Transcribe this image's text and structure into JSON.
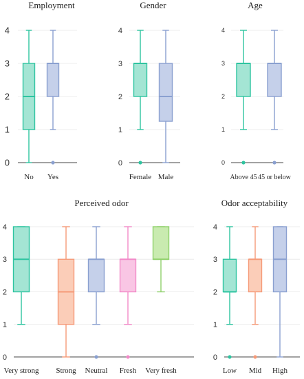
{
  "chart_data": [
    {
      "type": "box",
      "title": "Employment",
      "categories": [
        "No",
        "Yes"
      ],
      "yticks": [
        0,
        1,
        2,
        3,
        4
      ],
      "ylim": [
        0,
        4
      ],
      "grid": true,
      "series": [
        {
          "category": "No",
          "min": 0,
          "q1": 1,
          "median": 2,
          "q3": 3,
          "max": 4,
          "outliers": [],
          "color": "#2ec4a0",
          "fill": "#a4e5d4"
        },
        {
          "category": "Yes",
          "min": 1,
          "q1": 2,
          "median": 3,
          "q3": 3,
          "max": 4,
          "outliers": [
            0
          ],
          "color": "#8aa0d0",
          "fill": "#c5d0ea"
        }
      ]
    },
    {
      "type": "box",
      "title": "Gender",
      "categories": [
        "Female",
        "Male"
      ],
      "yticks": [
        0,
        1,
        2,
        3,
        4
      ],
      "ylim": [
        0,
        4
      ],
      "grid": true,
      "series": [
        {
          "category": "Female",
          "min": 1,
          "q1": 2,
          "median": 3,
          "q3": 3,
          "max": 4,
          "outliers": [
            0
          ],
          "color": "#2ec4a0",
          "fill": "#a4e5d4"
        },
        {
          "category": "Male",
          "min": 0,
          "q1": 1.25,
          "median": 2,
          "q3": 3,
          "max": 4,
          "outliers": [],
          "color": "#8aa0d0",
          "fill": "#c5d0ea"
        }
      ]
    },
    {
      "type": "box",
      "title": "Age",
      "categories": [
        "Above 45",
        "45 or below"
      ],
      "yticks": [
        0,
        1,
        2,
        3,
        4
      ],
      "ylim": [
        0,
        4
      ],
      "grid": true,
      "series": [
        {
          "category": "Above 45",
          "min": 1,
          "q1": 2,
          "median": 3,
          "q3": 3,
          "max": 4,
          "outliers": [
            0
          ],
          "color": "#2ec4a0",
          "fill": "#a4e5d4"
        },
        {
          "category": "45 or below",
          "min": 1,
          "q1": 2,
          "median": 3,
          "q3": 3,
          "max": 4,
          "outliers": [
            0
          ],
          "color": "#8aa0d0",
          "fill": "#c5d0ea"
        }
      ]
    },
    {
      "type": "box",
      "title": "Perceived odor",
      "categories": [
        "Very strong",
        "Strong",
        "Neutral",
        "Fresh",
        "Very fresh"
      ],
      "yticks": [
        0,
        1,
        2,
        3,
        4
      ],
      "ylim": [
        0,
        4
      ],
      "grid": true,
      "series": [
        {
          "category": "Very strong",
          "min": 1,
          "q1": 2,
          "median": 3,
          "q3": 4,
          "max": 4,
          "outliers": [],
          "color": "#2ec4a0",
          "fill": "#a4e5d4"
        },
        {
          "category": "Strong",
          "min": 0,
          "q1": 1,
          "median": 2,
          "q3": 3,
          "max": 4,
          "outliers": [],
          "color": "#f59a78",
          "fill": "#fbcdb8"
        },
        {
          "category": "Neutral",
          "min": 1,
          "q1": 2,
          "median": 3,
          "q3": 3,
          "max": 4,
          "outliers": [
            0
          ],
          "color": "#8aa0d0",
          "fill": "#c5d0ea"
        },
        {
          "category": "Fresh",
          "min": 1,
          "q1": 2,
          "median": 3,
          "q3": 3,
          "max": 4,
          "outliers": [
            0
          ],
          "color": "#f28ac8",
          "fill": "#f9c6e4"
        },
        {
          "category": "Very fresh",
          "min": 2,
          "q1": 3,
          "median": 3,
          "q3": 4,
          "max": 4,
          "outliers": [],
          "color": "#8fd06a",
          "fill": "#c9ebb0"
        }
      ]
    },
    {
      "type": "box",
      "title": "Odor acceptability",
      "categories": [
        "Low",
        "Mid",
        "High"
      ],
      "yticks": [
        0,
        1,
        2,
        3,
        4
      ],
      "ylim": [
        0,
        4
      ],
      "grid": true,
      "series": [
        {
          "category": "Low",
          "min": 1,
          "q1": 2,
          "median": 2,
          "q3": 3,
          "max": 4,
          "outliers": [
            0
          ],
          "color": "#2ec4a0",
          "fill": "#a4e5d4"
        },
        {
          "category": "Mid",
          "min": 1,
          "q1": 2,
          "median": 3,
          "q3": 3,
          "max": 4,
          "outliers": [
            0
          ],
          "color": "#f59a78",
          "fill": "#fbcdb8"
        },
        {
          "category": "High",
          "min": 0,
          "q1": 2,
          "median": 3,
          "q3": 4,
          "max": 4,
          "outliers": [],
          "color": "#8aa0d0",
          "fill": "#c5d0ea"
        }
      ]
    }
  ]
}
